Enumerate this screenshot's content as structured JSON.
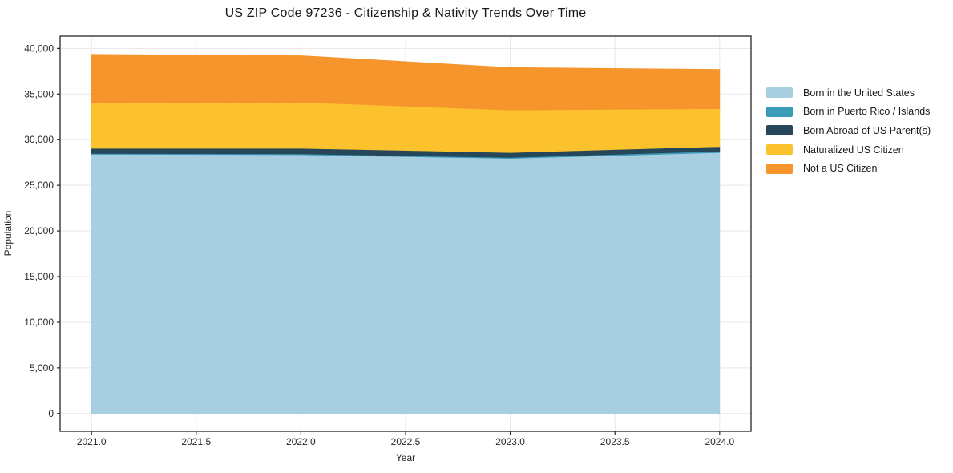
{
  "chart_data": {
    "type": "area",
    "stacked": true,
    "title": "US ZIP Code 97236 - Citizenship & Nativity Trends Over Time",
    "xlabel": "Year",
    "ylabel": "Population",
    "x": [
      2021,
      2022,
      2023,
      2024
    ],
    "series": [
      {
        "name": "Born in the United States",
        "color": "#a8cee2",
        "values": [
          28400,
          28350,
          27950,
          28600
        ]
      },
      {
        "name": "Born in Puerto Rico / Islands",
        "color": "#3a9ab8",
        "values": [
          100,
          100,
          100,
          150
        ]
      },
      {
        "name": "Born Abroad of US Parent(s)",
        "color": "#26475a",
        "values": [
          550,
          600,
          550,
          500
        ]
      },
      {
        "name": "Naturalized US Citizen",
        "color": "#fcc22d",
        "values": [
          5000,
          5050,
          4650,
          4150
        ]
      },
      {
        "name": "Not a US Citizen",
        "color": "#f6952c",
        "values": [
          5300,
          5100,
          4650,
          4300
        ]
      }
    ],
    "totals": [
      39350,
      39200,
      37900,
      37700
    ],
    "xlim": [
      2020.85,
      2024.15
    ],
    "ylim": [
      -1950,
      41350
    ],
    "xticks": [
      2021.0,
      2021.5,
      2022.0,
      2022.5,
      2023.0,
      2023.5,
      2024.0
    ],
    "xtick_labels": [
      "2021.0",
      "2021.5",
      "2022.0",
      "2022.5",
      "2023.0",
      "2023.5",
      "2024.0"
    ],
    "yticks": [
      0,
      5000,
      10000,
      15000,
      20000,
      25000,
      30000,
      35000,
      40000
    ],
    "ytick_labels": [
      "0",
      "5,000",
      "10,000",
      "15,000",
      "20,000",
      "25,000",
      "30,000",
      "35,000",
      "40,000"
    ],
    "grid": true,
    "grid_color": "#e7e7e7",
    "frame_color": "#262626",
    "legend_position": "right-outside"
  }
}
